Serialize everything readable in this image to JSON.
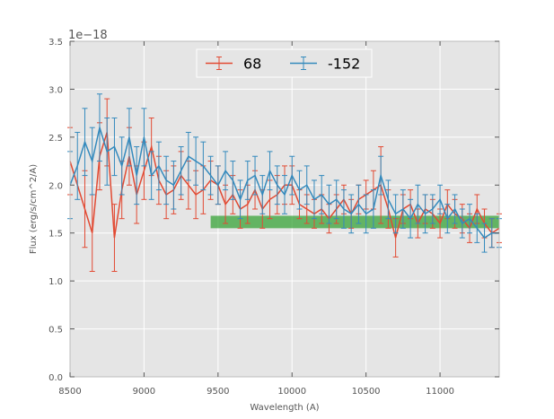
{
  "chart_data": {
    "type": "line",
    "title": "",
    "xlabel": "Wavelength (A)",
    "ylabel": "Flux (erg/s/cm^2/A)",
    "offset_text": "1e−18",
    "xlim": [
      8500,
      11400
    ],
    "ylim": [
      0.0,
      3.5
    ],
    "xticks": [
      8500,
      9000,
      9500,
      10000,
      10500,
      11000
    ],
    "xtick_labels": [
      "8500",
      "9000",
      "9500",
      "10000",
      "10500",
      "11000"
    ],
    "yticks": [
      0.0,
      0.5,
      1.0,
      1.5,
      2.0,
      2.5,
      3.0,
      3.5
    ],
    "ytick_labels": [
      "0.0",
      "0.5",
      "1.0",
      "1.5",
      "2.0",
      "2.5",
      "3.0",
      "3.5"
    ],
    "grid": true,
    "legend_position": "top-center",
    "band": {
      "x_start": 9450,
      "x_end": 11400,
      "y_low": 1.55,
      "y_high": 1.68,
      "color": "#2ca02c"
    },
    "colors": {
      "axes_bg": "#e5e5e5",
      "grid": "#ffffff",
      "series_1": "#e24a33",
      "series_2": "#348abd"
    },
    "series": [
      {
        "name": "68",
        "x": [
          8500,
          8600,
          8650,
          8700,
          8750,
          8800,
          8850,
          8900,
          8950,
          9000,
          9050,
          9100,
          9150,
          9200,
          9250,
          9300,
          9350,
          9400,
          9450,
          9500,
          9550,
          9600,
          9650,
          9700,
          9750,
          9800,
          9850,
          9900,
          9950,
          10000,
          10050,
          10100,
          10150,
          10200,
          10250,
          10300,
          10350,
          10400,
          10450,
          10500,
          10550,
          10600,
          10650,
          10700,
          10750,
          10800,
          10850,
          10900,
          10950,
          11000,
          11050,
          11100,
          11150,
          11200,
          11250,
          11300,
          11350,
          11400
        ],
        "y": [
          2.25,
          1.75,
          1.5,
          2.3,
          2.55,
          1.45,
          1.95,
          2.3,
          1.9,
          2.15,
          2.4,
          2.05,
          1.9,
          1.95,
          2.1,
          2.0,
          1.9,
          1.95,
          2.05,
          2.0,
          1.8,
          1.9,
          1.75,
          1.8,
          1.95,
          1.75,
          1.85,
          1.9,
          2.0,
          2.0,
          1.8,
          1.75,
          1.7,
          1.75,
          1.65,
          1.75,
          1.85,
          1.7,
          1.85,
          1.9,
          1.95,
          2.0,
          1.75,
          1.45,
          1.75,
          1.8,
          1.6,
          1.75,
          1.7,
          1.6,
          1.8,
          1.7,
          1.65,
          1.55,
          1.75,
          1.6,
          1.5,
          1.55
        ],
        "err": [
          0.35,
          0.4,
          0.4,
          0.35,
          0.35,
          0.35,
          0.3,
          0.3,
          0.3,
          0.3,
          0.3,
          0.25,
          0.25,
          0.25,
          0.25,
          0.25,
          0.25,
          0.25,
          0.2,
          0.2,
          0.2,
          0.2,
          0.2,
          0.2,
          0.2,
          0.2,
          0.2,
          0.2,
          0.2,
          0.2,
          0.15,
          0.15,
          0.15,
          0.15,
          0.15,
          0.15,
          0.15,
          0.15,
          0.15,
          0.15,
          0.2,
          0.4,
          0.2,
          0.2,
          0.15,
          0.15,
          0.15,
          0.15,
          0.15,
          0.15,
          0.15,
          0.15,
          0.15,
          0.15,
          0.15,
          0.15,
          0.15,
          0.15
        ]
      },
      {
        "name": "-152",
        "x": [
          8500,
          8550,
          8600,
          8650,
          8700,
          8750,
          8800,
          8850,
          8900,
          8950,
          9000,
          9050,
          9100,
          9150,
          9200,
          9250,
          9300,
          9350,
          9400,
          9450,
          9500,
          9550,
          9600,
          9650,
          9700,
          9750,
          9800,
          9850,
          9900,
          9950,
          10000,
          10050,
          10100,
          10150,
          10200,
          10250,
          10300,
          10350,
          10400,
          10450,
          10500,
          10550,
          10600,
          10650,
          10700,
          10750,
          10800,
          10850,
          10900,
          10950,
          11000,
          11050,
          11100,
          11150,
          11200,
          11250,
          11300,
          11350,
          11400
        ],
        "y": [
          2.0,
          2.2,
          2.45,
          2.25,
          2.6,
          2.35,
          2.4,
          2.2,
          2.5,
          2.1,
          2.5,
          2.1,
          2.2,
          2.05,
          2.0,
          2.15,
          2.3,
          2.25,
          2.2,
          2.1,
          2.0,
          2.15,
          2.05,
          1.85,
          2.05,
          2.1,
          1.9,
          2.15,
          2.0,
          1.9,
          2.1,
          1.95,
          2.0,
          1.85,
          1.9,
          1.8,
          1.85,
          1.75,
          1.7,
          1.8,
          1.7,
          1.75,
          2.1,
          1.85,
          1.7,
          1.75,
          1.65,
          1.8,
          1.7,
          1.75,
          1.85,
          1.65,
          1.75,
          1.6,
          1.65,
          1.55,
          1.45,
          1.5,
          1.5
        ],
        "err": [
          0.35,
          0.35,
          0.35,
          0.35,
          0.35,
          0.35,
          0.3,
          0.3,
          0.3,
          0.3,
          0.3,
          0.25,
          0.25,
          0.25,
          0.25,
          0.25,
          0.25,
          0.25,
          0.25,
          0.2,
          0.2,
          0.2,
          0.2,
          0.2,
          0.2,
          0.2,
          0.2,
          0.2,
          0.2,
          0.2,
          0.2,
          0.2,
          0.2,
          0.2,
          0.2,
          0.2,
          0.2,
          0.2,
          0.2,
          0.2,
          0.2,
          0.2,
          0.2,
          0.2,
          0.2,
          0.2,
          0.2,
          0.2,
          0.2,
          0.15,
          0.15,
          0.15,
          0.15,
          0.15,
          0.15,
          0.15,
          0.15,
          0.15,
          0.15
        ]
      }
    ]
  }
}
